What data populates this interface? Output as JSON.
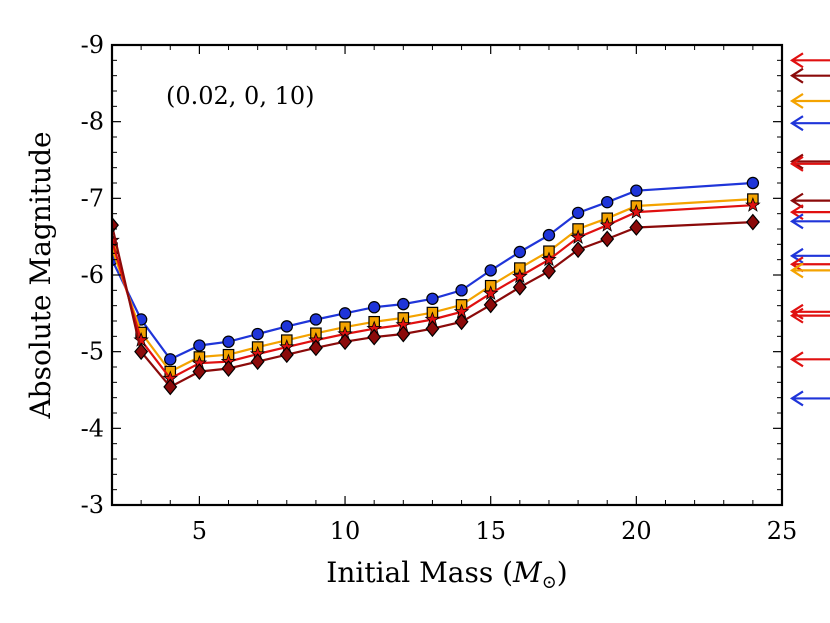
{
  "chart_data": {
    "type": "line",
    "title": "",
    "annotation": "(0.02, 0, 10)",
    "xlabel": "Initial Mass (",
    "xlabel_symbol": "M",
    "xlabel_sub": "⊙",
    "xlabel_close": ")",
    "ylabel": "Absolute Magnitude",
    "xlim": [
      2,
      25
    ],
    "ylim": [
      -3,
      -9
    ],
    "y_inverted": true,
    "xticks": [
      5,
      10,
      15,
      20,
      25
    ],
    "xtick_labels": [
      "5",
      "10",
      "15",
      "20",
      "25"
    ],
    "yticks": [
      -9,
      -8,
      -7,
      -6,
      -5,
      -4,
      -3
    ],
    "ytick_labels": [
      "-9",
      "-8",
      "-7",
      "-6",
      "-5",
      "-4",
      "-3"
    ],
    "grid": false,
    "x": [
      2,
      3,
      4,
      5,
      6,
      7,
      8,
      9,
      10,
      11,
      12,
      13,
      14,
      15,
      16,
      17,
      18,
      19,
      20,
      24
    ],
    "series": [
      {
        "name": "blue-circles",
        "color": "#1f35d9",
        "marker": "circle",
        "values": [
          -6.2,
          -5.42,
          -4.9,
          -5.08,
          -5.13,
          -5.23,
          -5.33,
          -5.42,
          -5.5,
          -5.58,
          -5.62,
          -5.69,
          -5.8,
          -6.06,
          -6.3,
          -6.52,
          -6.81,
          -6.95,
          -7.1,
          -7.2
        ]
      },
      {
        "name": "orange-squares",
        "color": "#f4a300",
        "marker": "square",
        "values": [
          -6.35,
          -5.25,
          -4.74,
          -4.93,
          -4.96,
          -5.06,
          -5.15,
          -5.24,
          -5.32,
          -5.39,
          -5.44,
          -5.51,
          -5.61,
          -5.86,
          -6.09,
          -6.31,
          -6.6,
          -6.74,
          -6.9,
          -6.99
        ]
      },
      {
        "name": "red-stars",
        "color": "#e01010",
        "marker": "star",
        "values": [
          -6.45,
          -5.15,
          -4.65,
          -4.85,
          -4.87,
          -4.97,
          -5.06,
          -5.15,
          -5.23,
          -5.3,
          -5.35,
          -5.42,
          -5.52,
          -5.76,
          -5.98,
          -6.2,
          -6.49,
          -6.65,
          -6.82,
          -6.91
        ]
      },
      {
        "name": "darkred-diamonds",
        "color": "#8b0a0a",
        "marker": "diamond",
        "values": [
          -6.65,
          -5.0,
          -4.54,
          -4.74,
          -4.78,
          -4.87,
          -4.96,
          -5.05,
          -5.13,
          -5.19,
          -5.23,
          -5.3,
          -5.39,
          -5.61,
          -5.84,
          -6.05,
          -6.33,
          -6.47,
          -6.62,
          -6.69
        ]
      }
    ],
    "arrows": [
      {
        "y": -8.8,
        "color": "#e01010"
      },
      {
        "y": -8.6,
        "color": "#8b0a0a"
      },
      {
        "y": -8.27,
        "color": "#f4a300"
      },
      {
        "y": -7.98,
        "color": "#1f35d9"
      },
      {
        "y": -7.48,
        "color": "#8b0a0a"
      },
      {
        "y": -7.45,
        "color": "#e01010"
      },
      {
        "y": -6.97,
        "color": "#8b0a0a"
      },
      {
        "y": -6.82,
        "color": "#e01010"
      },
      {
        "y": -6.7,
        "color": "#1f35d9"
      },
      {
        "y": -6.25,
        "color": "#1f35d9"
      },
      {
        "y": -6.14,
        "color": "#e01010"
      },
      {
        "y": -6.06,
        "color": "#f4a300"
      },
      {
        "y": -5.52,
        "color": "#e01010"
      },
      {
        "y": -5.47,
        "color": "#e01010"
      },
      {
        "y": -4.9,
        "color": "#e01010"
      },
      {
        "y": -4.39,
        "color": "#1f35d9"
      }
    ]
  }
}
